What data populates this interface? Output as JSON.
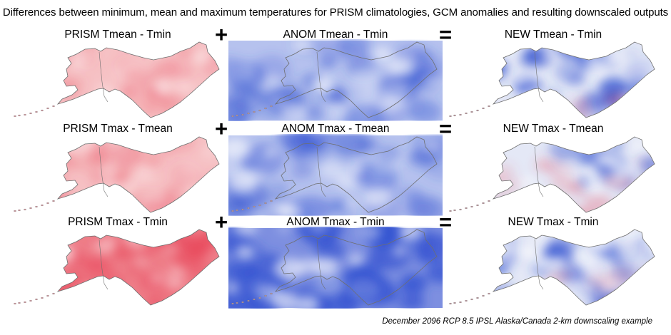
{
  "title": "Differences between minimum, mean and maximum temperatures for PRISM climatologies, GCM anomalies and resulting downscaled outputs",
  "operators": {
    "plus": "+",
    "equals": "="
  },
  "rows": [
    {
      "prism_title": "PRISM Tmean - Tmin",
      "anom_title": "ANOM Tmean - Tmin",
      "new_title": "NEW Tmean - Tmin",
      "prism_intensity": "light",
      "anom_intensity": "medium",
      "new_pattern": "mostly-blue"
    },
    {
      "prism_title": "PRISM Tmax - Tmean",
      "anom_title": "ANOM Tmax - Tmean",
      "new_title": "NEW Tmax - Tmean",
      "prism_intensity": "light",
      "anom_intensity": "medium",
      "new_pattern": "mixed-red-blue"
    },
    {
      "prism_title": "PRISM Tmax - Tmin",
      "anom_title": "ANOM Tmax - Tmin",
      "new_title": "NEW Tmax - Tmin",
      "prism_intensity": "strong",
      "anom_intensity": "strong",
      "new_pattern": "mostly-blue"
    }
  ],
  "colors": {
    "red": "#e8475a",
    "blue": "#2f4fd0",
    "outline": "#6e6e6e"
  },
  "caption": "December 2096 RCP 8.5 IPSL Alaska/Canada 2-km downscaling example"
}
